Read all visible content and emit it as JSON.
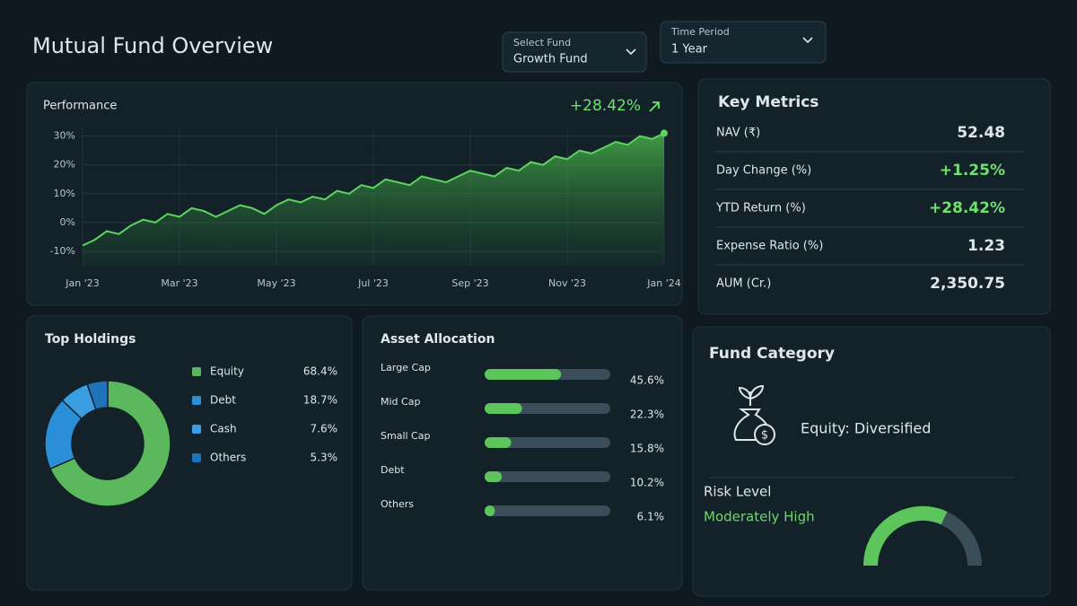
{
  "header": {
    "title": "Mutual Fund Overview",
    "fund_select": {
      "label": "Select Fund",
      "value": "Growth Fund"
    },
    "period_select": {
      "label": "Time Period",
      "value": "1 Year"
    }
  },
  "performance": {
    "type": "area",
    "title": "Performance",
    "change": "+28.42%",
    "color": "#5fd35f",
    "ylim": [
      -15,
      33
    ],
    "yticks": [
      {
        "value": 30,
        "label": "30%"
      },
      {
        "value": 20,
        "label": "20%"
      },
      {
        "value": 10,
        "label": "10%"
      },
      {
        "value": 0,
        "label": "0%"
      },
      {
        "value": -10,
        "label": "-10%"
      }
    ],
    "x_labels": [
      "Jan '23",
      "Mar '23",
      "May '23",
      "Jul '23",
      "Sep '23",
      "Nov '23",
      "Jan '24"
    ],
    "grid": true,
    "values": [
      -8,
      -6,
      -3,
      -4,
      -1,
      1,
      0,
      3,
      2,
      5,
      4,
      2,
      4,
      6,
      5,
      3,
      6,
      8,
      7,
      9,
      8,
      11,
      10,
      13,
      12,
      15,
      14,
      13,
      16,
      15,
      14,
      16,
      18,
      17,
      16,
      19,
      18,
      21,
      20,
      23,
      22,
      25,
      24,
      26,
      28,
      27,
      30,
      29,
      31
    ]
  },
  "key_metrics": {
    "title": "Key Metrics",
    "rows": [
      {
        "label": "NAV (₹)",
        "value": "52.48"
      },
      {
        "label": "Day Change (%)",
        "value": "+1.25%"
      },
      {
        "label": "YTD Return (%)",
        "value": "+28.42%"
      },
      {
        "label": "Expense Ratio (%)",
        "value": "1.23"
      },
      {
        "label": "AUM (Cr.)",
        "value": "2,350.75"
      }
    ]
  },
  "top_holdings": {
    "type": "donut",
    "title": "Top Holdings",
    "categories": [
      "Equity",
      "Debt",
      "Cash",
      "Others"
    ],
    "values": [
      68.4,
      18.7,
      7.6,
      5.3
    ],
    "value_labels": [
      "68.4%",
      "18.7%",
      "7.6%",
      "5.3%"
    ],
    "colors": [
      "#5cb85c",
      "#2b8fd8",
      "#3a9fe2",
      "#1f73b8"
    ]
  },
  "asset_allocation": {
    "type": "progress-bar",
    "title": "Asset Allocation",
    "categories": [
      "Large Cap",
      "Mid Cap",
      "Small Cap",
      "Debt",
      "Others"
    ],
    "values": [
      45.6,
      22.3,
      15.8,
      10.2,
      6.1
    ],
    "value_labels": [
      "45.6%",
      "22.3%",
      "15.8%",
      "10.2%",
      "6.1%"
    ],
    "xlim": [
      0,
      75
    ],
    "color": "#5cc65c"
  },
  "fund_category": {
    "title": "Fund Category",
    "category": "Equity: Diversified",
    "risk_title": "Risk Level",
    "risk_value": "Moderately High"
  }
}
